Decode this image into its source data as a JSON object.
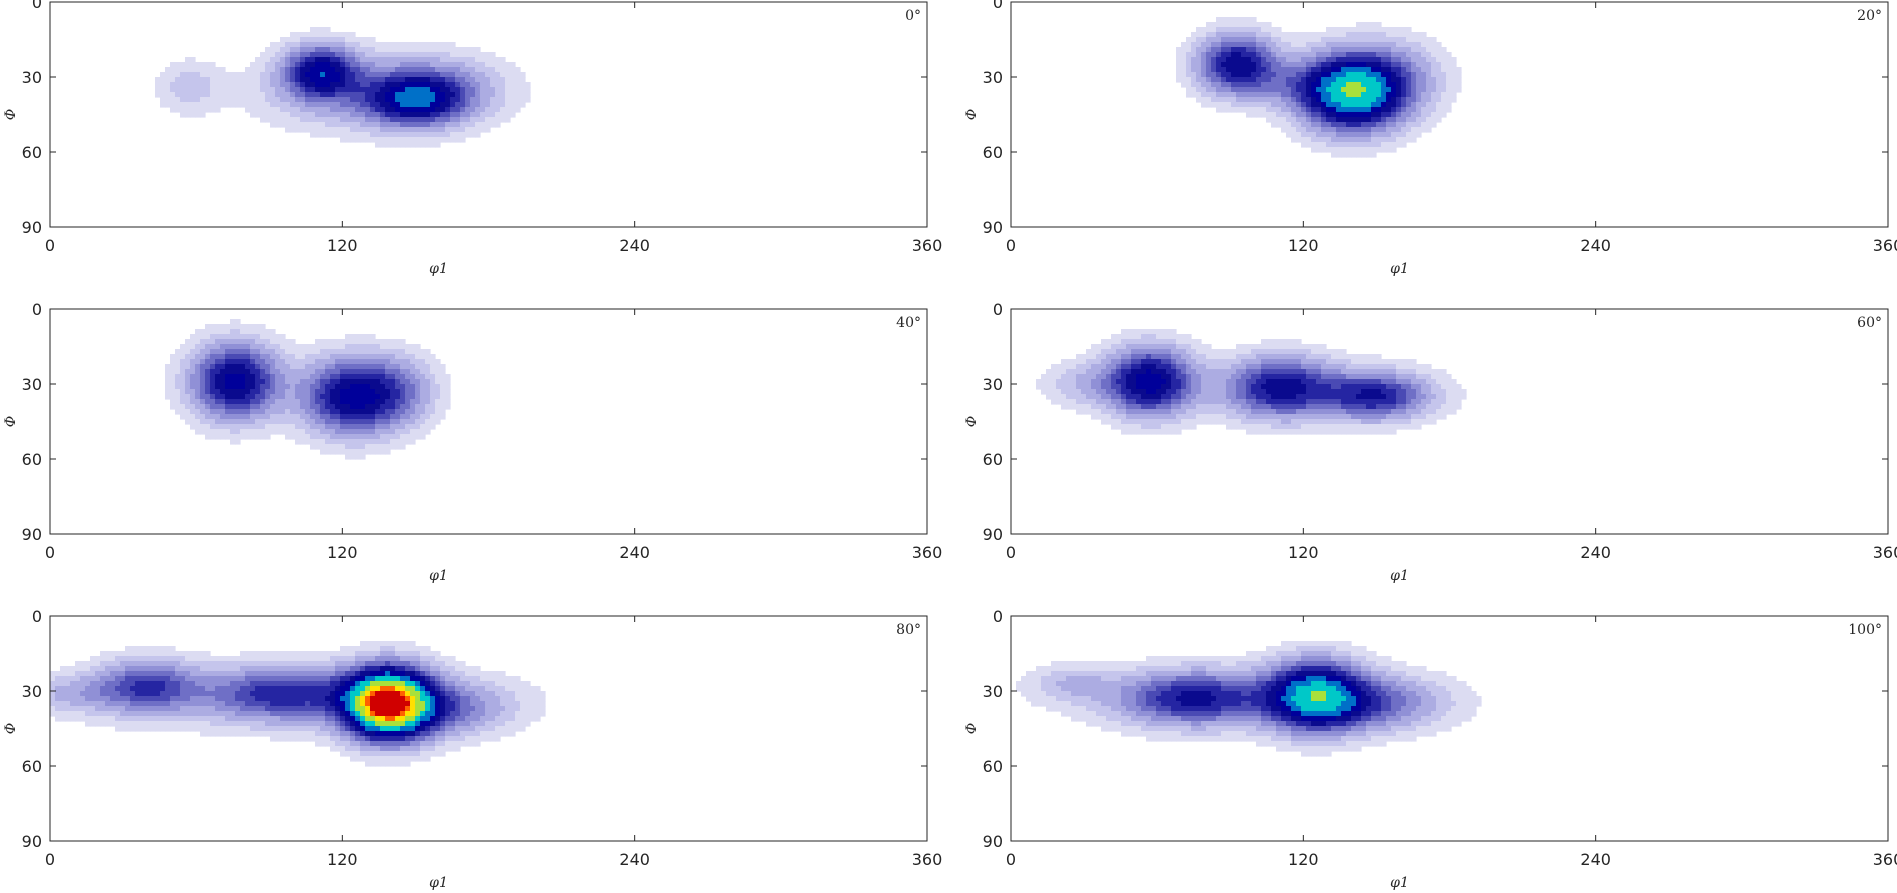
{
  "chart_data": {
    "type": "heatmap",
    "layout": "3x2 grid",
    "levels": 9,
    "colormap": [
      "#dcdcf2",
      "#c5c5ec",
      "#acace2",
      "#9090d6",
      "#6f6fc6",
      "#4a4ab4",
      "#2525a2",
      "#0a0a8e",
      "#00009a",
      "#0070c8",
      "#00c8c8",
      "#a8e03c",
      "#ffe000",
      "#ff6000",
      "#d00000"
    ],
    "xlim": [
      0,
      360
    ],
    "ylim": [
      0,
      90
    ],
    "y_reversed": true,
    "xticks": [
      "0",
      "120",
      "240",
      "360"
    ],
    "yticks": [
      "0",
      "30",
      "60",
      "90"
    ],
    "xlabel": "φ1",
    "ylabel": "Φ",
    "grid": false,
    "panels": [
      {
        "section": "0°",
        "peaks": [
          {
            "x": 57,
            "y": 34,
            "sx": 9,
            "sy": 7,
            "amp": 0.16
          },
          {
            "x": 111,
            "y": 28,
            "sx": 10,
            "sy": 7,
            "amp": 0.82
          },
          {
            "x": 150,
            "y": 39,
            "sx": 13,
            "sy": 7,
            "amp": 0.8
          },
          {
            "x": 135,
            "y": 36,
            "sx": 30,
            "sy": 10,
            "amp": 0.33
          },
          {
            "x": 165,
            "y": 34,
            "sx": 14,
            "sy": 8,
            "amp": 0.15
          }
        ]
      },
      {
        "section": "20°",
        "peaks": [
          {
            "x": 93,
            "y": 25,
            "sx": 11,
            "sy": 8,
            "amp": 0.82
          },
          {
            "x": 140,
            "y": 36,
            "sx": 14,
            "sy": 10,
            "amp": 1.4
          },
          {
            "x": 115,
            "y": 33,
            "sx": 12,
            "sy": 6,
            "amp": 0.2
          },
          {
            "x": 158,
            "y": 30,
            "sx": 14,
            "sy": 10,
            "amp": 0.25
          }
        ]
      },
      {
        "section": "40°",
        "peaks": [
          {
            "x": 76,
            "y": 29,
            "sx": 12,
            "sy": 10,
            "amp": 0.9
          },
          {
            "x": 125,
            "y": 35,
            "sx": 14,
            "sy": 10,
            "amp": 0.92
          },
          {
            "x": 145,
            "y": 32,
            "sx": 10,
            "sy": 9,
            "amp": 0.22
          }
        ]
      },
      {
        "section": "60°",
        "peaks": [
          {
            "x": 57,
            "y": 29,
            "sx": 12,
            "sy": 9,
            "amp": 0.92
          },
          {
            "x": 110,
            "y": 31,
            "sx": 14,
            "sy": 8,
            "amp": 0.62
          },
          {
            "x": 150,
            "y": 35,
            "sx": 14,
            "sy": 6,
            "amp": 0.6
          },
          {
            "x": 30,
            "y": 30,
            "sx": 12,
            "sy": 6,
            "amp": 0.18
          },
          {
            "x": 125,
            "y": 33,
            "sx": 30,
            "sy": 8,
            "amp": 0.22
          }
        ]
      },
      {
        "section": "80°",
        "peaks": [
          {
            "x": 40,
            "y": 28,
            "sx": 14,
            "sy": 7,
            "amp": 0.55
          },
          {
            "x": 95,
            "y": 31,
            "sx": 20,
            "sy": 7,
            "amp": 0.55
          },
          {
            "x": 139,
            "y": 35,
            "sx": 12,
            "sy": 9,
            "amp": 2.2
          },
          {
            "x": 165,
            "y": 37,
            "sx": 16,
            "sy": 7,
            "amp": 0.35
          },
          {
            "x": 10,
            "y": 31,
            "sx": 14,
            "sy": 5,
            "amp": 0.18
          },
          {
            "x": 100,
            "y": 33,
            "sx": 60,
            "sy": 9,
            "amp": 0.15
          }
        ]
      },
      {
        "section": "100°",
        "peaks": [
          {
            "x": 75,
            "y": 33,
            "sx": 20,
            "sy": 7,
            "amp": 0.65
          },
          {
            "x": 125,
            "y": 32,
            "sx": 13,
            "sy": 9,
            "amp": 1.2
          },
          {
            "x": 150,
            "y": 35,
            "sx": 18,
            "sy": 7,
            "amp": 0.4
          },
          {
            "x": 25,
            "y": 27,
            "sx": 12,
            "sy": 5,
            "amp": 0.18
          },
          {
            "x": 100,
            "y": 33,
            "sx": 50,
            "sy": 9,
            "amp": 0.14
          }
        ]
      }
    ]
  }
}
